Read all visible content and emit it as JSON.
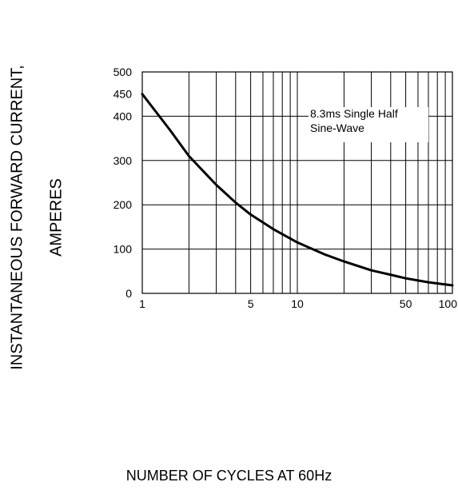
{
  "chart_data": {
    "type": "line",
    "title": "",
    "xlabel": "NUMBER OF CYCLES AT 60Hz",
    "ylabel_lines": [
      "INSTANTANEOUS FORWARD CURRENT,",
      "AMPERES"
    ],
    "x_scale": "log",
    "xlim": [
      1,
      100
    ],
    "ylim": [
      0,
      500
    ],
    "x_tick_labels": [
      "1",
      "5",
      "10",
      "50",
      "100"
    ],
    "x_tick_values": [
      1,
      5,
      10,
      50,
      100
    ],
    "y_tick_labels": [
      "0",
      "100",
      "200",
      "300",
      "400",
      "450",
      "500"
    ],
    "y_tick_values": [
      0,
      100,
      200,
      300,
      400,
      450,
      500
    ],
    "grid": true,
    "annotation": [
      "8.3ms Single Half",
      "Sine-Wave"
    ],
    "series": [
      {
        "x": [
          1,
          1.5,
          2,
          3,
          4,
          5,
          7,
          10,
          15,
          20,
          30,
          40,
          50,
          70,
          100
        ],
        "y": [
          450,
          370,
          310,
          245,
          205,
          178,
          145,
          115,
          88,
          72,
          52,
          42,
          34,
          25,
          18
        ]
      }
    ],
    "colors": {
      "line": "#000000",
      "grid": "#000000"
    }
  }
}
